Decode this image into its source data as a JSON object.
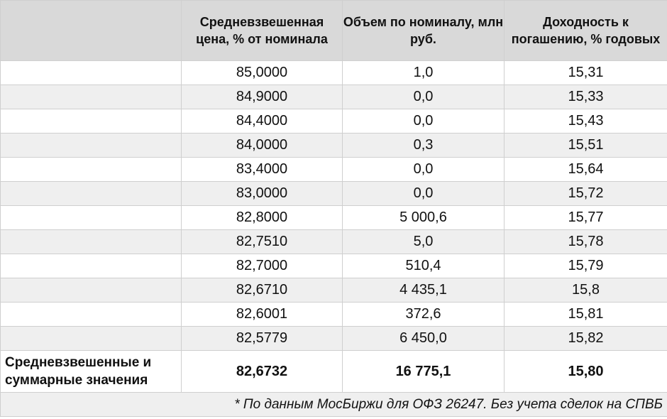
{
  "header": {
    "col0": "",
    "col1": "Средневзвешенная цена, % от номинала",
    "col2": "Объем по номиналу, млн руб.",
    "col3": "Доходность к погашению, % годовых"
  },
  "rows": [
    {
      "price": "85,0000",
      "volume": "1,0",
      "yield": "15,31"
    },
    {
      "price": "84,9000",
      "volume": "0,0",
      "yield": "15,33"
    },
    {
      "price": "84,4000",
      "volume": "0,0",
      "yield": "15,43"
    },
    {
      "price": "84,0000",
      "volume": "0,3",
      "yield": "15,51"
    },
    {
      "price": "83,4000",
      "volume": "0,0",
      "yield": "15,64"
    },
    {
      "price": "83,0000",
      "volume": "0,0",
      "yield": "15,72"
    },
    {
      "price": "82,8000",
      "volume": "5 000,6",
      "yield": "15,77"
    },
    {
      "price": "82,7510",
      "volume": "5,0",
      "yield": "15,78"
    },
    {
      "price": "82,7000",
      "volume": "510,4",
      "yield": "15,79"
    },
    {
      "price": "82,6710",
      "volume": "4 435,1",
      "yield": "15,8"
    },
    {
      "price": "82,6001",
      "volume": "372,6",
      "yield": "15,81"
    },
    {
      "price": "82,5779",
      "volume": "6 450,0",
      "yield": "15,82"
    }
  ],
  "summary": {
    "label": "Средневзвешенные и суммарные значения",
    "price": "82,6732",
    "volume": "16 775,1",
    "yield": "15,80"
  },
  "note": "* По данным МосБиржи для ОФЗ 26247. Без учета сделок на СПВБ"
}
